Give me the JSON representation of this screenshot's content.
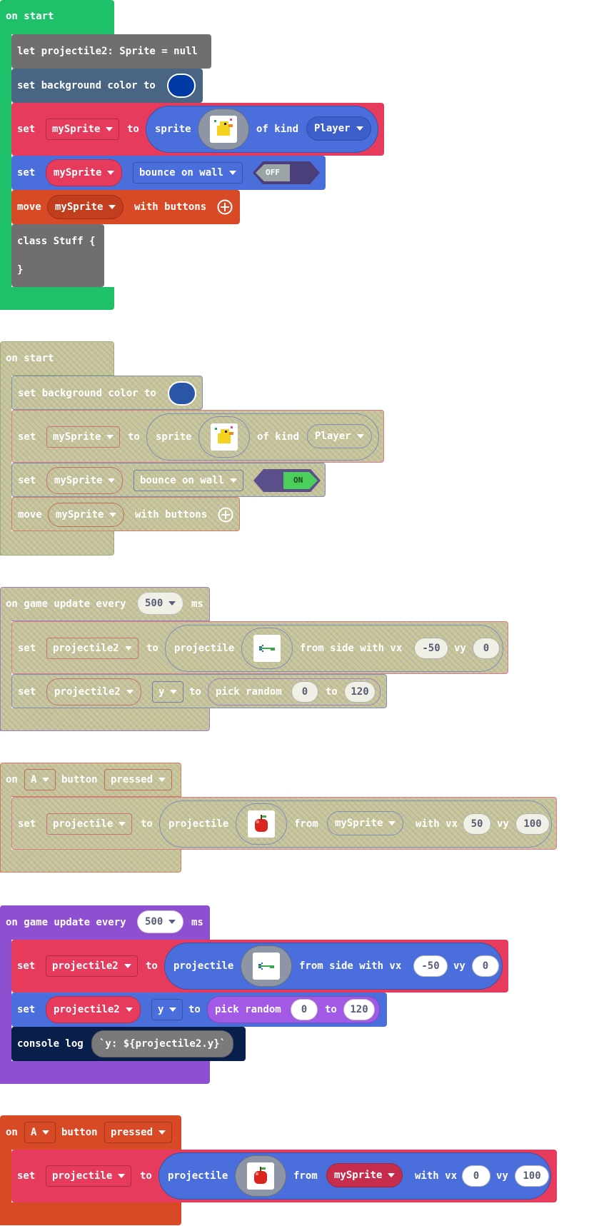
{
  "colors": {
    "event_green": "#1fc06a",
    "variables_gray": "#6f6f6f",
    "scene_slate": "#4a6583",
    "sprites_red": "#e63b5d",
    "sprites_blue": "#4b6edd",
    "controller_orange": "#d84a26",
    "purple_events": "#8e4fd0",
    "math_purple": "#a259e6",
    "console_navy": "#071f4a",
    "disabled_olive": "#c5c59a"
  },
  "group1": {
    "hat": "on start",
    "let_block": "let projectile2: Sprite = null",
    "bg_label": "set background color to",
    "bg_color": "#0039a6",
    "set_label": "set",
    "var1": "mySprite",
    "to_label": "to",
    "sprite_label": "sprite",
    "of_kind_label": "of kind",
    "kind": "Player",
    "bounce_label": "bounce on wall",
    "toggle": "OFF",
    "move_label": "move",
    "with_buttons_label": "with buttons",
    "class_open": "class Stuff {",
    "class_close": "}"
  },
  "group2": {
    "hat": "on start",
    "bg_label": "set background color to",
    "bg_color": "#2a56a8",
    "set_label": "set",
    "var1": "mySprite",
    "to_label": "to",
    "sprite_label": "sprite",
    "of_kind_label": "of kind",
    "kind": "Player",
    "bounce_label": "bounce on wall",
    "toggle": "ON",
    "move_label": "move",
    "with_buttons_label": "with buttons"
  },
  "group3": {
    "hat_prefix": "on game update every",
    "interval": "500",
    "hat_suffix": "ms",
    "set_label": "set",
    "var": "projectile2",
    "to_label": "to",
    "projectile_label": "projectile",
    "from_side_label": "from side with vx",
    "vx": "-50",
    "vy_label": "vy",
    "vy": "0",
    "prop": "y",
    "pick_label": "pick random",
    "min": "0",
    "to2_label": "to",
    "max": "120"
  },
  "group4": {
    "on_label": "on",
    "button": "A",
    "button_label": "button",
    "state": "pressed",
    "set_label": "set",
    "var": "projectile",
    "to_label": "to",
    "projectile_label": "projectile",
    "from_label": "from",
    "source": "mySprite",
    "with_vx_label": "with vx",
    "vx": "50",
    "vy_label": "vy",
    "vy": "100"
  },
  "group5": {
    "hat_prefix": "on game update every",
    "interval": "500",
    "hat_suffix": "ms",
    "set_label": "set",
    "var": "projectile2",
    "to_label": "to",
    "projectile_label": "projectile",
    "from_side_label": "from side with vx",
    "vx": "-50",
    "vy_label": "vy",
    "vy": "0",
    "prop": "y",
    "pick_label": "pick random",
    "min": "0",
    "to2_label": "to",
    "max": "120",
    "console_label": "console log",
    "console_value": "`y: ${projectile2.y}`"
  },
  "group6": {
    "on_label": "on",
    "button": "A",
    "button_label": "button",
    "state": "pressed",
    "set_label": "set",
    "var": "projectile",
    "to_label": "to",
    "projectile_label": "projectile",
    "from_label": "from",
    "source": "mySprite",
    "with_vx_label": "with vx",
    "vx": "0",
    "vy_label": "vy",
    "vy": "100"
  }
}
